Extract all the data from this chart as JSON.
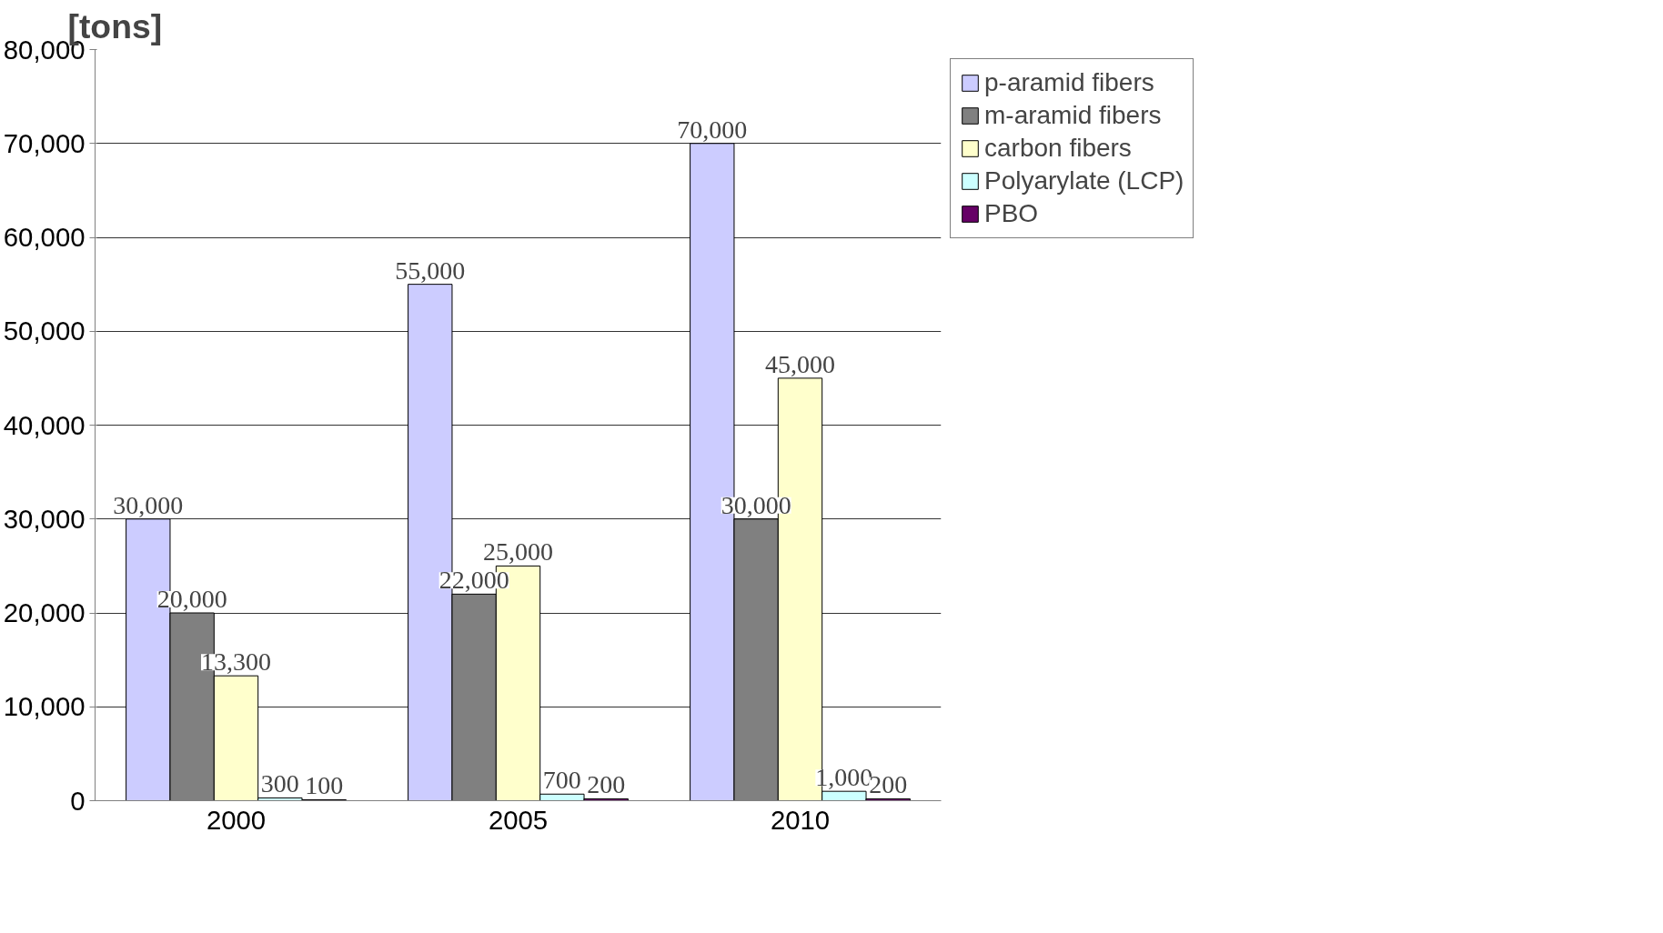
{
  "chart_data": {
    "type": "bar",
    "ylabel": "[tons]",
    "categories": [
      "2000",
      "2005",
      "2010"
    ],
    "series": [
      {
        "name": "p-aramid fibers",
        "color": "#ccccff",
        "values": [
          30000,
          55000,
          70000
        ],
        "value_labels": [
          "30,000",
          "55,000",
          "70,000"
        ]
      },
      {
        "name": "m-aramid fibers",
        "color": "#808080",
        "values": [
          20000,
          22000,
          30000
        ],
        "value_labels": [
          "20,000",
          "22,000",
          "30,000"
        ]
      },
      {
        "name": "carbon fibers",
        "color": "#ffffcc",
        "values": [
          13300,
          25000,
          45000
        ],
        "value_labels": [
          "13,300",
          "25,000",
          "45,000"
        ]
      },
      {
        "name": "Polyarylate (LCP)",
        "color": "#ccffff",
        "values": [
          300,
          700,
          1000
        ],
        "value_labels": [
          "300",
          "700",
          "1,000"
        ]
      },
      {
        "name": "PBO",
        "color": "#660066",
        "values": [
          100,
          200,
          200
        ],
        "value_labels": [
          "100",
          "200",
          "200"
        ]
      }
    ],
    "ylim": [
      0,
      80000
    ],
    "yticks": [
      {
        "value": 0,
        "label": "0"
      },
      {
        "value": 10000,
        "label": "10,000"
      },
      {
        "value": 20000,
        "label": "20,000"
      },
      {
        "value": 30000,
        "label": "30,000"
      },
      {
        "value": 40000,
        "label": "40,000"
      },
      {
        "value": 50000,
        "label": "50,000"
      },
      {
        "value": 60000,
        "label": "60,000"
      },
      {
        "value": 70000,
        "label": "70,000"
      },
      {
        "value": 80000,
        "label": "80,000"
      }
    ],
    "grid": "y",
    "legend": "top right"
  }
}
